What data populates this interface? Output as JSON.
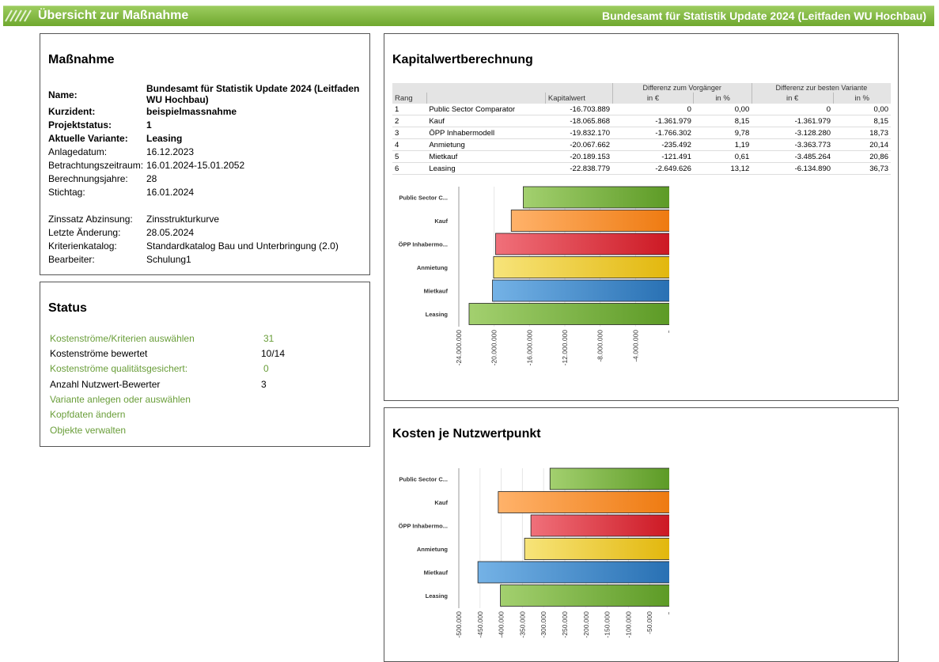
{
  "header": {
    "title": "Übersicht zur Maßnahme",
    "project_title": "Bundesamt für Statistik Update 2024 (Leitfaden WU Hochbau)"
  },
  "massnahme": {
    "heading": "Maßnahme",
    "fields": [
      {
        "label": "Name:",
        "value": "Bundesamt für Statistik Update 2024 (Leitfaden WU Hochbau)",
        "bold": true
      },
      {
        "label": "Kurzident:",
        "value": "beispielmassnahme",
        "bold": true
      },
      {
        "label": "Projektstatus:",
        "value": "1",
        "bold": true
      },
      {
        "label": "Aktuelle Variante:",
        "value": "Leasing",
        "bold": true
      },
      {
        "label": "Anlagedatum:",
        "value": "16.12.2023"
      },
      {
        "label": "Betrachtungszeitraum:",
        "value": "16.01.2024-15.01.2052"
      },
      {
        "label": "Berechnungsjahre:",
        "value": "28"
      },
      {
        "label": "Stichtag:",
        "value": "16.01.2024"
      },
      {
        "label": "Zinssatz Abzinsung:",
        "value": "Zinsstrukturkurve"
      },
      {
        "label": "Letzte Änderung:",
        "value": "28.05.2024"
      },
      {
        "label": "Kriterienkatalog:",
        "value": "Standardkatalog Bau und Unterbringung (2.0)"
      },
      {
        "label": "Bearbeiter:",
        "value": "Schulung1"
      }
    ]
  },
  "status": {
    "heading": "Status",
    "rows": [
      {
        "label": "Kostenströme/Kriterien auswählen",
        "value": "31",
        "link": true
      },
      {
        "label": "Kostenströme bewertet",
        "value": "10/14",
        "link": false
      },
      {
        "label": "Kostenströme qualitätsgesichert:",
        "value": "0",
        "link": true
      },
      {
        "label": "Anzahl Nutzwert-Bewerter",
        "value": "3",
        "link": false
      },
      {
        "label": "Variante anlegen oder auswählen",
        "value": "",
        "link": true
      },
      {
        "label": "Kopfdaten ändern",
        "value": "",
        "link": true
      },
      {
        "label": "Objekte verwalten",
        "value": "",
        "link": true
      }
    ]
  },
  "kapitalwert": {
    "heading": "Kapitalwertberechnung",
    "group_headers": [
      "Differenz zum Vorgänger",
      "Differenz zur besten Variante"
    ],
    "columns": [
      "Rang",
      "",
      "Kapitalwert",
      "in €",
      "in %",
      "in €",
      "in %"
    ],
    "rows": [
      [
        "1",
        "Public Sector Comparator",
        "-16.703.889",
        "0",
        "0,00",
        "0",
        "0,00"
      ],
      [
        "2",
        "Kauf",
        "-18.065.868",
        "-1.361.979",
        "8,15",
        "-1.361.979",
        "8,15"
      ],
      [
        "3",
        "ÖPP Inhabermodell",
        "-19.832.170",
        "-1.766.302",
        "9,78",
        "-3.128.280",
        "18,73"
      ],
      [
        "4",
        "Anmietung",
        "-20.067.662",
        "-235.492",
        "1,19",
        "-3.363.773",
        "20,14"
      ],
      [
        "5",
        "Mietkauf",
        "-20.189.153",
        "-121.491",
        "0,61",
        "-3.485.264",
        "20,86"
      ],
      [
        "6",
        "Leasing",
        "-22.838.779",
        "-2.649.626",
        "13,12",
        "-6.134.890",
        "36,73"
      ]
    ]
  },
  "kosten": {
    "heading": "Kosten je Nutzwertpunkt"
  },
  "colors": {
    "green": "#6aa32f",
    "orange": "#f07f16",
    "red": "#d4202a",
    "yellow": "#e8c11a",
    "blue": "#2e7dc0"
  },
  "chart_data": [
    {
      "type": "bar",
      "orientation": "horizontal",
      "categories": [
        "Public Sector C...",
        "Kauf",
        "ÖPP Inhabermo...",
        "Anmietung",
        "Mietkauf",
        "Leasing"
      ],
      "values": [
        -16703889,
        -18065868,
        -19832170,
        -20067662,
        -20189153,
        -22838779
      ],
      "colors": [
        "green",
        "orange",
        "red",
        "yellow",
        "blue",
        "green"
      ],
      "ticks": [
        -24000000,
        -20000000,
        -16000000,
        -12000000,
        -8000000,
        -4000000,
        0
      ],
      "tick_labels": [
        "-24.000.000",
        "-20.000.000",
        "-16.000.000",
        "-12.000.000",
        "-8.000.000",
        "-4.000.000",
        "0"
      ],
      "xlim": [
        -24000000,
        0
      ]
    },
    {
      "type": "bar",
      "orientation": "horizontal",
      "categories": [
        "Public Sector C...",
        "Kauf",
        "ÖPP Inhabermo...",
        "Anmietung",
        "Mietkauf",
        "Leasing"
      ],
      "values": [
        -285,
        -407,
        -330,
        -345,
        -455,
        -402
      ],
      "colors": [
        "green",
        "orange",
        "red",
        "yellow",
        "blue",
        "green"
      ],
      "ticks": [
        -500,
        -450,
        -400,
        -350,
        -300,
        -250,
        -200,
        -150,
        -100,
        -50,
        0
      ],
      "tick_labels": [
        "-500.000",
        "-450.000",
        "-400.000",
        "-350.000",
        "-300.000",
        "-250.000",
        "-200.000",
        "-150.000",
        "-100.000",
        "-50.000",
        "0"
      ],
      "xlim": [
        -500,
        0
      ]
    }
  ]
}
